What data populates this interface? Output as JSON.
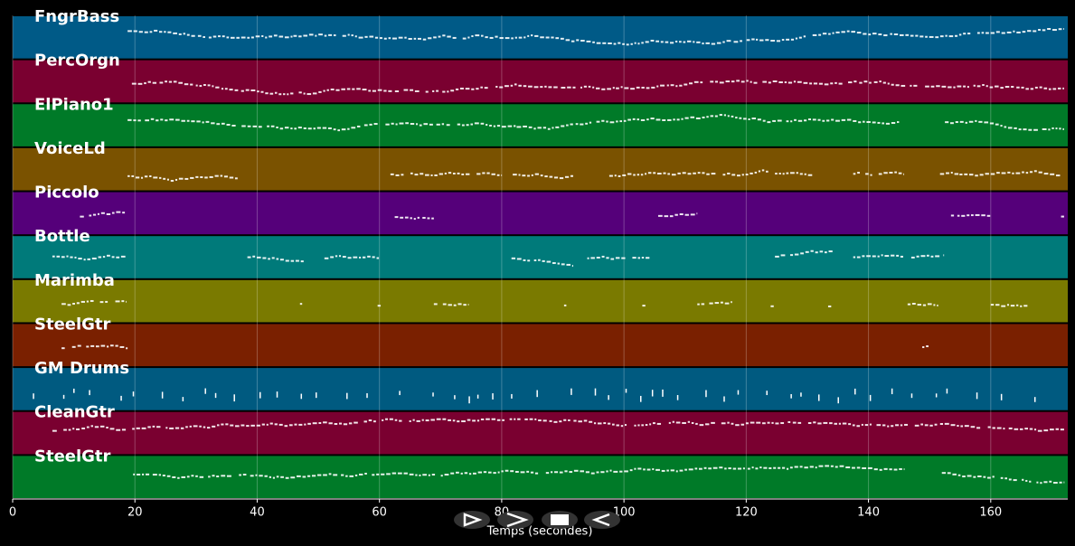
{
  "chart_data": {
    "type": "pianoroll",
    "xlabel": "Temps (secondes)",
    "xlim": [
      0,
      172.6
    ],
    "xticks": [
      0,
      20,
      40,
      60,
      80,
      100,
      120,
      140,
      160
    ],
    "grid": true,
    "tracks": [
      {
        "name": "FngrBass",
        "color": "#005a87",
        "spans": [
          [
            18.8,
            172
          ]
        ]
      },
      {
        "name": "PercOrgn",
        "color": "#7a0030",
        "spans": [
          [
            19.5,
            172
          ]
        ]
      },
      {
        "name": "ElPiano1",
        "color": "#007a28",
        "spans": [
          [
            18.8,
            145
          ],
          [
            152.5,
            172
          ]
        ]
      },
      {
        "name": "VoiceLd",
        "color": "#7a5200",
        "spans": [
          [
            18.8,
            36.8
          ],
          [
            61.8,
            80
          ],
          [
            81.8,
            91.7
          ],
          [
            97.6,
            123.6
          ],
          [
            124.7,
            131
          ],
          [
            137.5,
            145.8
          ],
          [
            151.7,
            171.5
          ]
        ]
      },
      {
        "name": "Piccolo",
        "color": "#55007a",
        "spans": [
          [
            11,
            18.6
          ],
          [
            62.5,
            68.9
          ],
          [
            105.6,
            112
          ],
          [
            153.5,
            160
          ],
          [
            171.5,
            172
          ]
        ]
      },
      {
        "name": "Bottle",
        "color": "#007a7a",
        "spans": [
          [
            6.5,
            18.6
          ],
          [
            38.4,
            47.6
          ],
          [
            51,
            61
          ],
          [
            81.6,
            91.7
          ],
          [
            94,
            104.4
          ],
          [
            124.7,
            134.7
          ],
          [
            137.5,
            145.8
          ],
          [
            147,
            152.3
          ]
        ]
      },
      {
        "name": "Marimba",
        "color": "#7a7a00",
        "spans": [
          [
            8,
            18.6
          ],
          [
            47,
            47.5
          ],
          [
            59.7,
            60.2
          ],
          [
            68.9,
            74.5
          ],
          [
            90.2,
            90.7
          ],
          [
            103,
            103.5
          ],
          [
            112,
            117.7
          ],
          [
            124,
            124.5
          ],
          [
            133.4,
            133.9
          ],
          [
            146.4,
            151.4
          ],
          [
            160,
            166
          ]
        ]
      },
      {
        "name": "SteelGtr",
        "color": "#7a2000",
        "spans": [
          [
            8,
            18.8
          ],
          [
            148.8,
            150
          ]
        ]
      },
      {
        "name": "GM Drums",
        "color": "#005a80",
        "spans": [
          [
            3.3,
            169.5
          ]
        ]
      },
      {
        "name": "CleanGtr",
        "color": "#7a0030",
        "spans": [
          [
            6.5,
            172
          ]
        ]
      },
      {
        "name": "SteelGtr",
        "color": "#007a28",
        "spans": [
          [
            19.7,
            145.8
          ],
          [
            152,
            172
          ]
        ]
      }
    ]
  }
}
